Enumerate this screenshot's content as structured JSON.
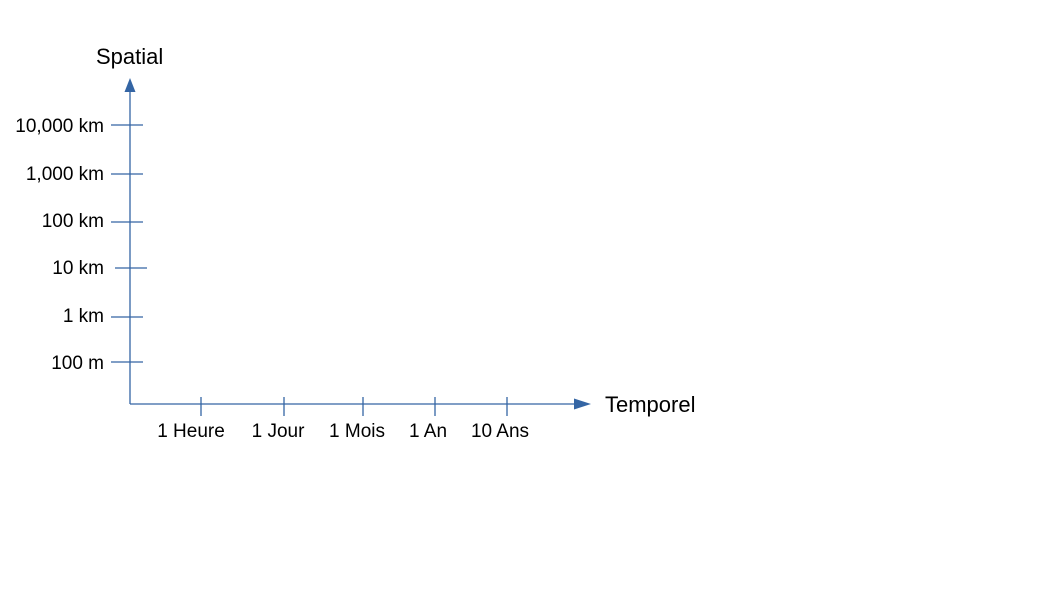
{
  "diagram": {
    "axis_color": "#3465a4",
    "y_axis": {
      "title": "Spatial",
      "ticks": [
        "10,000 km",
        "1,000 km",
        "100 km",
        "10 km",
        "1 km",
        "100 m"
      ]
    },
    "x_axis": {
      "title": "Temporel",
      "ticks": [
        "1 Heure",
        "1 Jour",
        "1 Mois",
        "1 An",
        "10 Ans"
      ]
    }
  }
}
